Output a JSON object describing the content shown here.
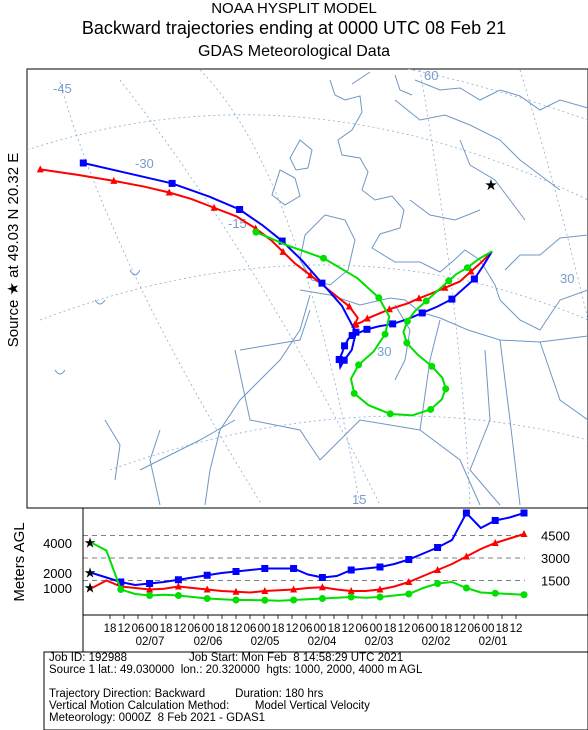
{
  "header": {
    "model": "NOAA HYSPLIT MODEL",
    "title": "Backward trajectories ending at 0000 UTC 08 Feb 21",
    "subtitle": "GDAS Meteorological Data"
  },
  "source_label": {
    "source": "Source",
    "at": "at",
    "lat": "49.03 N",
    "lon": "20.32 E"
  },
  "map": {
    "lon_labels": [
      "-45",
      "-30",
      "-15",
      "30"
    ],
    "lat_labels": [
      "60",
      "30",
      "15"
    ]
  },
  "height_panel": {
    "ylabel": "Meters AGL",
    "left_ticks": [
      "4000",
      "2000",
      "1000"
    ],
    "right_ticks": [
      "4500",
      "3000",
      "1500"
    ],
    "time_ticks": [
      "18",
      "12",
      "06",
      "00",
      "18",
      "12",
      "06",
      "00",
      "18",
      "12",
      "06",
      "00",
      "18",
      "12",
      "06",
      "00",
      "18",
      "12",
      "06",
      "00",
      "18",
      "12",
      "06",
      "00",
      "18",
      "12",
      "06",
      "00",
      "18",
      "12"
    ],
    "date_labels": [
      "02/07",
      "02/06",
      "02/05",
      "02/04",
      "02/03",
      "02/02",
      "02/01"
    ]
  },
  "colors": {
    "red": "#ff0000",
    "blue": "#0000ff",
    "green": "#00e000",
    "map_lines": "#6f97c4",
    "grid_lines": "#8aaed6"
  },
  "chart_data": {
    "type": "line",
    "title": "Backward trajectories ending at 0000 UTC 08 Feb 21",
    "ylabel": "Meters AGL",
    "ylim": [
      0,
      6000
    ],
    "x_direction": "time runs backward from 02/08 00 UTC (left) to 02/01 (right)",
    "x": [
      0,
      6,
      12,
      18,
      24,
      30,
      36,
      42,
      48,
      54,
      60,
      66,
      72,
      78,
      84,
      90,
      96,
      102,
      108,
      114,
      120,
      126,
      132,
      138,
      144,
      150,
      156,
      162,
      168,
      174,
      180
    ],
    "series": [
      {
        "name": "1000",
        "color": "#ff0000",
        "values": [
          1000,
          1500,
          1100,
          1000,
          900,
          950,
          1100,
          1000,
          900,
          800,
          750,
          700,
          800,
          850,
          900,
          1000,
          1050,
          900,
          800,
          800,
          900,
          1100,
          1400,
          1800,
          2200,
          2600,
          3100,
          3600,
          4000,
          4300,
          4600
        ]
      },
      {
        "name": "2000",
        "color": "#0000ff",
        "values": [
          2000,
          1700,
          1400,
          1200,
          1300,
          1400,
          1550,
          1700,
          1850,
          2000,
          2100,
          2200,
          2300,
          2300,
          2300,
          1900,
          1700,
          1800,
          2200,
          2300,
          2400,
          2600,
          2900,
          3300,
          3700,
          4200,
          6000,
          5000,
          5500,
          5700,
          6000
        ]
      },
      {
        "name": "4000",
        "color": "#00e000",
        "values": [
          4000,
          3500,
          900,
          600,
          500,
          550,
          500,
          400,
          300,
          250,
          200,
          200,
          180,
          150,
          200,
          250,
          300,
          350,
          400,
          350,
          400,
          500,
          600,
          1000,
          1300,
          1400,
          1000,
          700,
          650,
          600,
          550
        ]
      }
    ],
    "map_trajectories": [
      {
        "name": "1000",
        "color": "#ff0000",
        "lon": [
          20.3,
          19.0,
          17.5,
          16.0,
          14.0,
          12.0,
          10.5,
          9.0,
          6.5,
          4.5,
          3.5,
          2.8,
          2.0,
          1.5,
          1.8,
          2.2,
          1.0,
          -1.5,
          -4.0,
          -6.0,
          -7.5,
          -9.0,
          -11.0,
          -13.5,
          -16.5,
          -19.5,
          -22.5,
          -26.0,
          -30.0,
          -35.0,
          -40.0
        ],
        "lat": [
          49.0,
          47.5,
          46.0,
          44.5,
          43.5,
          42.5,
          41.8,
          41.0,
          40.0,
          39.0,
          38.5,
          38.0,
          37.6,
          37.2,
          37.5,
          38.5,
          40.0,
          42.0,
          44.0,
          45.5,
          47.0,
          48.5,
          50.0,
          51.5,
          52.5,
          53.5,
          54.2,
          54.8,
          55.3,
          55.8,
          56.2
        ]
      },
      {
        "name": "2000",
        "color": "#0000ff",
        "lon": [
          20.3,
          19.2,
          18.0,
          16.5,
          15.0,
          13.0,
          11.0,
          9.0,
          7.0,
          5.0,
          3.5,
          2.5,
          1.5,
          1.0,
          0.5,
          -0.5,
          -1.0,
          0.0,
          0.5,
          1.5,
          2.0,
          0.0,
          -2.5,
          -5.0,
          -7.5,
          -10.0,
          -13.0,
          -17.0,
          -22.0,
          -28.0,
          -34.0
        ],
        "lat": [
          49.0,
          47.0,
          45.0,
          43.5,
          42.0,
          40.8,
          39.8,
          38.8,
          38.0,
          37.5,
          37.0,
          36.5,
          36.0,
          35.5,
          34.5,
          33.5,
          32.5,
          31.5,
          32.5,
          34.0,
          36.5,
          40.0,
          43.0,
          46.0,
          48.5,
          50.5,
          52.5,
          54.0,
          55.5,
          56.5,
          57.5
        ]
      },
      {
        "name": "4000",
        "color": "#00e000",
        "lon": [
          20.3,
          18.5,
          17.0,
          15.5,
          14.5,
          13.0,
          11.5,
          10.0,
          9.0,
          8.5,
          9.0,
          10.5,
          12.5,
          14.0,
          14.5,
          14.0,
          12.5,
          10.0,
          7.0,
          4.0,
          2.0,
          1.5,
          2.5,
          4.5,
          6.0,
          6.5,
          5.0,
          2.0,
          -2.0,
          -7.0,
          -11.0
        ],
        "lat": [
          49.0,
          47.8,
          46.5,
          45.5,
          44.5,
          43.0,
          41.5,
          40.0,
          38.5,
          37.0,
          35.5,
          34.0,
          32.5,
          31.0,
          29.5,
          28.0,
          26.5,
          25.5,
          25.5,
          26.5,
          28.0,
          30.0,
          32.0,
          34.0,
          36.5,
          39.0,
          41.5,
          44.0,
          46.5,
          48.0,
          49.5
        ]
      }
    ]
  },
  "info": {
    "job_id": "Job ID: 192988",
    "job_start": "Job Start: Mon Feb  8 14:58:29 UTC 2021",
    "source_line": "Source 1 lat.: 49.030000  lon.: 20.320000  hgts: 1000, 2000, 4000 m AGL",
    "direction": "Trajectory Direction: Backward",
    "duration": "Duration: 180 hrs",
    "vertical": "Vertical Motion Calculation Method:        Model Vertical Velocity",
    "meteorology": "Meteorology: 0000Z  8 Feb 2021 - GDAS1"
  }
}
